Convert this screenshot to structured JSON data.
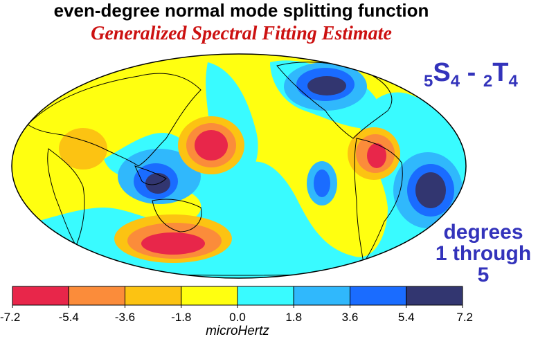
{
  "title": "even-degree normal mode splitting function",
  "subtitle": "Generalized Spectral Fitting Estimate",
  "mode": {
    "n1": "5",
    "l1": "S",
    "d1": "4",
    "sep": " - ",
    "n2": "2",
    "l2": "T",
    "d2": "4"
  },
  "degrees_line1": "degrees",
  "degrees_line2": "1 through 5",
  "colorbar": {
    "unit": "microHertz",
    "ticks": [
      "-7.2",
      "-5.4",
      "-3.6",
      "-1.8",
      "0.0",
      "1.8",
      "3.6",
      "5.4",
      "7.2"
    ],
    "colors": [
      "#e8264a",
      "#fb8c3a",
      "#fcc312",
      "#ffff10",
      "#39fbff",
      "#30b8fc",
      "#1a6cff",
      "#323670"
    ]
  },
  "map": {
    "projection": "Mollweide",
    "ocean_fill_level": 0.9,
    "anomalies": [
      {
        "label": "positive",
        "value": 6.5
      },
      {
        "label": "negative",
        "value": -6.8
      }
    ]
  }
}
